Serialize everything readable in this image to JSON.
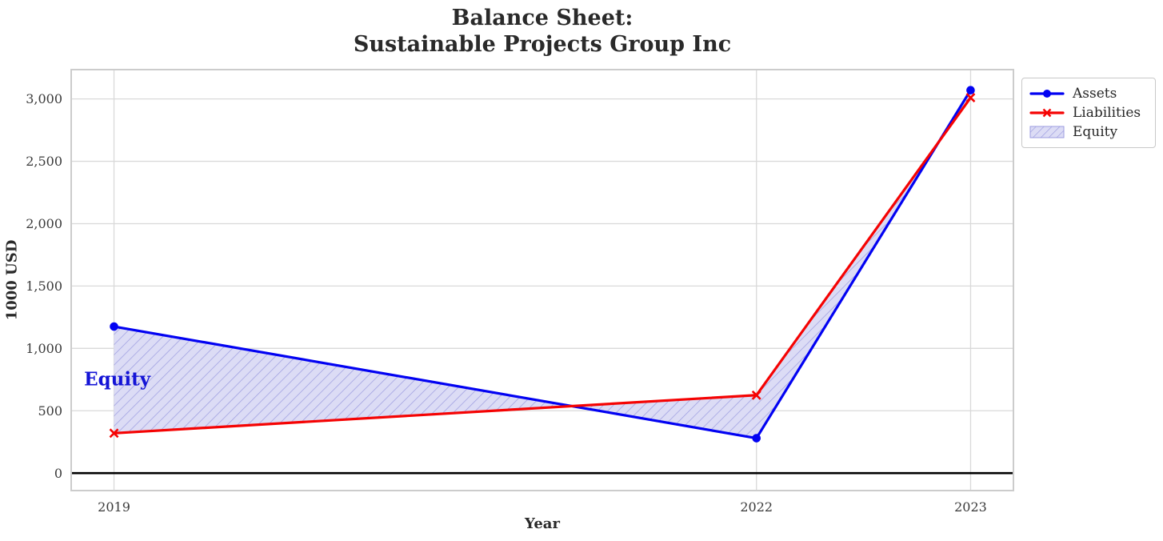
{
  "chart_data": {
    "type": "line",
    "title": "Balance Sheet: Sustainable Projects Group Inc",
    "title_lines": [
      "Balance Sheet:",
      "Sustainable Projects Group Inc"
    ],
    "xlabel": "Year",
    "ylabel": "1000 USD",
    "x": [
      2019,
      2022,
      2023
    ],
    "x_tick_labels": [
      "2019",
      "2022",
      "2023"
    ],
    "y_ticks": [
      {
        "value": 0,
        "label": "0"
      },
      {
        "value": 500,
        "label": "500"
      },
      {
        "value": 1000,
        "label": "1,000"
      },
      {
        "value": 1500,
        "label": "1,500"
      },
      {
        "value": 2000,
        "label": "2,000"
      },
      {
        "value": 2500,
        "label": "2,500"
      },
      {
        "value": 3000,
        "label": "3,000"
      }
    ],
    "xlim": [
      2018.8,
      2023.2
    ],
    "ylim": [
      -140,
      3235
    ],
    "grid": true,
    "zero_line": true,
    "series": [
      {
        "name": "Assets",
        "color": "#0202f2",
        "marker": "circle",
        "values": [
          1175,
          280,
          3070
        ]
      },
      {
        "name": "Liabilities",
        "color": "#f50303",
        "marker": "x",
        "values": [
          320,
          625,
          3010
        ]
      }
    ],
    "fill_between": {
      "name": "Equity",
      "upper": "Assets",
      "lower": "Liabilities",
      "fill_color": "#dcdcf5",
      "hatch_color": "#9b9be0",
      "hatch": "//"
    },
    "annotation": {
      "text": "Equity",
      "x": 2018.86,
      "y": 755,
      "color": "#1414d6"
    },
    "legend": {
      "position": "outside upper right",
      "entries": [
        "Assets",
        "Liabilities",
        "Equity"
      ]
    },
    "colors": {
      "grid": "#d9d9d9",
      "border": "#cccccc",
      "zero_line": "#000000",
      "tick_label": "#3a3a3a",
      "text": "#2a2a2a",
      "background": "#ffffff"
    }
  }
}
